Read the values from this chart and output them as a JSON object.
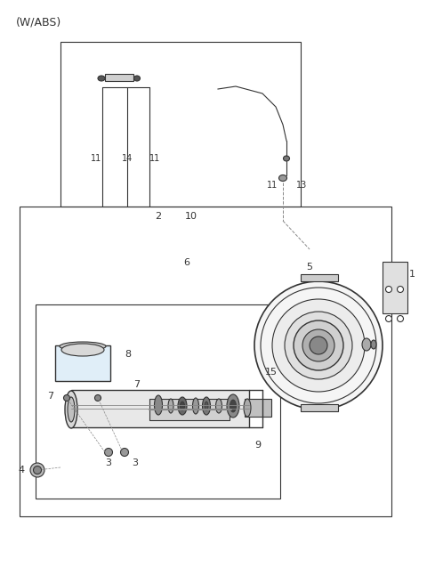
{
  "title": "(W/ABS)",
  "bg_color": "#ffffff",
  "line_color": "#333333",
  "gray_dark": "#444444",
  "gray_mid": "#888888",
  "gray_light": "#cccccc",
  "gray_fill": "#e8e8e8"
}
